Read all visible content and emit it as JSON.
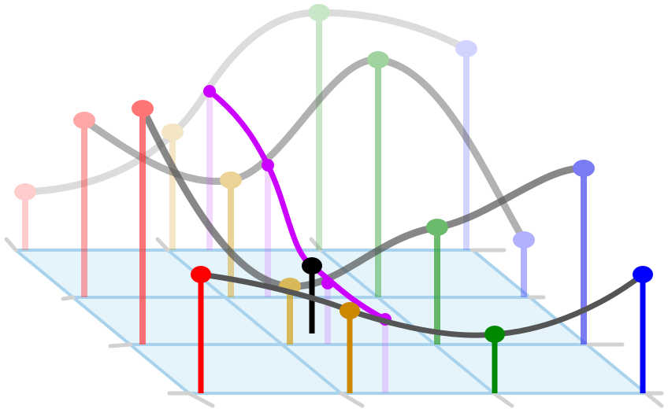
{
  "diagram": {
    "description_free": true,
    "colors": {
      "grid_fill": "#d6eef8",
      "grid_line": "#a9d3ec",
      "rail": "#c8c8c8",
      "curve": "#555555",
      "query_curve": "#cc00ff",
      "query_point": "#000000"
    },
    "rows": [
      {
        "id": "row-back",
        "opacity": 0.22,
        "colors": [
          "#ff3b3b",
          "#d4a017",
          "#2e9e2e",
          "#5555ff"
        ]
      },
      {
        "id": "row-mid2",
        "opacity": 0.45,
        "colors": [
          "#ff3b3b",
          "#d4a017",
          "#2e9e2e",
          "#5555ff"
        ]
      },
      {
        "id": "row-mid1",
        "opacity": 0.7,
        "colors": [
          "#ff3b3b",
          "#d4a017",
          "#2e9e2e",
          "#5555ff"
        ]
      },
      {
        "id": "row-front",
        "opacity": 1.0,
        "colors": [
          "#ff0000",
          "#cc8800",
          "#008800",
          "#0000ff"
        ]
      }
    ],
    "icons": [
      "control-point-icon"
    ]
  }
}
